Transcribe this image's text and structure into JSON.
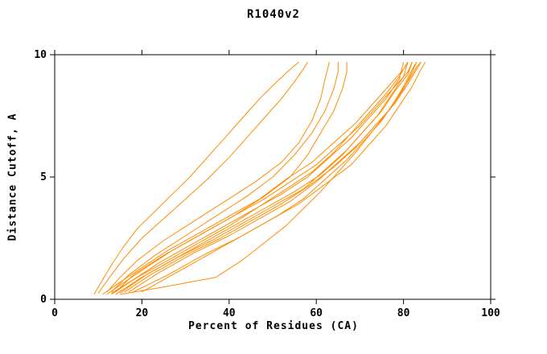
{
  "chart_data": {
    "type": "line",
    "title": "R1040v2",
    "xlabel": "Percent of Residues (CA)",
    "ylabel": "Distance Cutoff, A",
    "xlim": [
      0,
      100
    ],
    "ylim": [
      0,
      10
    ],
    "x_ticks": [
      0,
      20,
      40,
      60,
      80,
      100
    ],
    "y_ticks": [
      0,
      5,
      10
    ],
    "grid": false,
    "legend": "none",
    "frame": "box",
    "series_color": "#ff8c00",
    "axis_color": "#000000",
    "series": [
      {
        "name": "curve-1",
        "points": [
          [
            9,
            0.2
          ],
          [
            11,
            0.8
          ],
          [
            13,
            1.4
          ],
          [
            16,
            2.2
          ],
          [
            19,
            2.9
          ],
          [
            23,
            3.6
          ],
          [
            27,
            4.3
          ],
          [
            31,
            5.0
          ],
          [
            35,
            5.8
          ],
          [
            39,
            6.6
          ],
          [
            43,
            7.4
          ],
          [
            47,
            8.2
          ],
          [
            51,
            8.9
          ],
          [
            54,
            9.4
          ],
          [
            56,
            9.7
          ]
        ]
      },
      {
        "name": "curve-2",
        "points": [
          [
            10,
            0.25
          ],
          [
            13,
            1.0
          ],
          [
            16,
            1.7
          ],
          [
            20,
            2.5
          ],
          [
            25,
            3.3
          ],
          [
            30,
            4.1
          ],
          [
            35,
            4.9
          ],
          [
            40,
            5.8
          ],
          [
            44,
            6.6
          ],
          [
            48,
            7.4
          ],
          [
            52,
            8.2
          ],
          [
            55,
            8.9
          ],
          [
            57,
            9.4
          ],
          [
            58,
            9.7
          ]
        ]
      },
      {
        "name": "curve-3",
        "points": [
          [
            12,
            0.3
          ],
          [
            15,
            0.9
          ],
          [
            19,
            1.6
          ],
          [
            25,
            2.4
          ],
          [
            32,
            3.2
          ],
          [
            39,
            4.0
          ],
          [
            46,
            4.8
          ],
          [
            52,
            5.6
          ],
          [
            56,
            6.4
          ],
          [
            59,
            7.3
          ],
          [
            61,
            8.2
          ],
          [
            62,
            9.0
          ],
          [
            63,
            9.7
          ]
        ]
      },
      {
        "name": "curve-4",
        "points": [
          [
            13,
            0.3
          ],
          [
            17,
            1.0
          ],
          [
            23,
            1.8
          ],
          [
            30,
            2.6
          ],
          [
            37,
            3.4
          ],
          [
            44,
            4.2
          ],
          [
            50,
            5.0
          ],
          [
            55,
            5.9
          ],
          [
            59,
            6.8
          ],
          [
            62,
            7.7
          ],
          [
            64,
            8.6
          ],
          [
            65,
            9.3
          ],
          [
            65,
            9.7
          ]
        ]
      },
      {
        "name": "curve-5",
        "points": [
          [
            14,
            0.3
          ],
          [
            18,
            1.0
          ],
          [
            25,
            1.8
          ],
          [
            33,
            2.6
          ],
          [
            41,
            3.4
          ],
          [
            48,
            4.2
          ],
          [
            54,
            5.0
          ],
          [
            58,
            5.9
          ],
          [
            61,
            6.8
          ],
          [
            64,
            7.7
          ],
          [
            66,
            8.6
          ],
          [
            67,
            9.3
          ],
          [
            67,
            9.7
          ]
        ]
      },
      {
        "name": "curve-6",
        "points": [
          [
            13,
            0.2
          ],
          [
            18,
            0.8
          ],
          [
            24,
            1.5
          ],
          [
            31,
            2.2
          ],
          [
            38,
            2.9
          ],
          [
            45,
            3.6
          ],
          [
            52,
            4.3
          ],
          [
            58,
            5.0
          ],
          [
            63,
            5.8
          ],
          [
            68,
            6.6
          ],
          [
            72,
            7.4
          ],
          [
            76,
            8.2
          ],
          [
            79,
            9.0
          ],
          [
            80,
            9.7
          ]
        ]
      },
      {
        "name": "curve-7",
        "points": [
          [
            14,
            0.2
          ],
          [
            20,
            0.9
          ],
          [
            27,
            1.6
          ],
          [
            34,
            2.3
          ],
          [
            41,
            3.0
          ],
          [
            48,
            3.7
          ],
          [
            55,
            4.4
          ],
          [
            61,
            5.1
          ],
          [
            66,
            5.9
          ],
          [
            70,
            6.7
          ],
          [
            74,
            7.5
          ],
          [
            77,
            8.3
          ],
          [
            80,
            9.1
          ],
          [
            81,
            9.7
          ]
        ]
      },
      {
        "name": "curve-8",
        "points": [
          [
            15,
            0.25
          ],
          [
            21,
            1.0
          ],
          [
            28,
            1.7
          ],
          [
            36,
            2.4
          ],
          [
            43,
            3.1
          ],
          [
            50,
            3.8
          ],
          [
            57,
            4.5
          ],
          [
            62,
            5.3
          ],
          [
            67,
            6.1
          ],
          [
            71,
            6.9
          ],
          [
            75,
            7.7
          ],
          [
            78,
            8.5
          ],
          [
            81,
            9.2
          ],
          [
            82,
            9.7
          ]
        ]
      },
      {
        "name": "curve-9",
        "points": [
          [
            16,
            0.3
          ],
          [
            22,
            1.0
          ],
          [
            30,
            1.8
          ],
          [
            38,
            2.5
          ],
          [
            45,
            3.2
          ],
          [
            52,
            3.9
          ],
          [
            58,
            4.6
          ],
          [
            64,
            5.4
          ],
          [
            69,
            6.2
          ],
          [
            73,
            7.0
          ],
          [
            77,
            7.8
          ],
          [
            80,
            8.6
          ],
          [
            82,
            9.3
          ],
          [
            83,
            9.7
          ]
        ]
      },
      {
        "name": "curve-10",
        "points": [
          [
            17,
            0.3
          ],
          [
            24,
            1.1
          ],
          [
            32,
            1.9
          ],
          [
            40,
            2.6
          ],
          [
            47,
            3.3
          ],
          [
            54,
            4.0
          ],
          [
            60,
            4.8
          ],
          [
            65,
            5.6
          ],
          [
            70,
            6.4
          ],
          [
            74,
            7.2
          ],
          [
            78,
            8.0
          ],
          [
            81,
            8.8
          ],
          [
            83,
            9.4
          ],
          [
            84,
            9.7
          ]
        ]
      },
      {
        "name": "curve-11",
        "points": [
          [
            20,
            0.3
          ],
          [
            28,
            1.1
          ],
          [
            36,
            1.9
          ],
          [
            44,
            2.7
          ],
          [
            51,
            3.4
          ],
          [
            57,
            4.1
          ],
          [
            62,
            4.9
          ],
          [
            67,
            5.7
          ],
          [
            71,
            6.5
          ],
          [
            75,
            7.3
          ],
          [
            78,
            8.1
          ],
          [
            81,
            8.9
          ],
          [
            83,
            9.5
          ],
          [
            84,
            9.7
          ]
        ]
      },
      {
        "name": "curve-12",
        "points": [
          [
            15,
            0.2
          ],
          [
            25,
            0.5
          ],
          [
            37,
            0.9
          ],
          [
            43,
            1.6
          ],
          [
            48,
            2.3
          ],
          [
            53,
            3.0
          ],
          [
            57,
            3.7
          ],
          [
            61,
            4.4
          ],
          [
            65,
            5.2
          ],
          [
            69,
            6.0
          ],
          [
            73,
            6.9
          ],
          [
            77,
            7.8
          ],
          [
            80,
            8.7
          ],
          [
            82,
            9.4
          ],
          [
            83,
            9.7
          ]
        ]
      },
      {
        "name": "curve-13",
        "points": [
          [
            12,
            0.2
          ],
          [
            16,
            0.7
          ],
          [
            21,
            1.3
          ],
          [
            27,
            2.0
          ],
          [
            34,
            2.7
          ],
          [
            41,
            3.4
          ],
          [
            48,
            4.1
          ],
          [
            54,
            4.8
          ],
          [
            60,
            5.5
          ],
          [
            65,
            6.3
          ],
          [
            70,
            7.1
          ],
          [
            74,
            7.9
          ],
          [
            78,
            8.7
          ],
          [
            81,
            9.3
          ],
          [
            82,
            9.7
          ]
        ]
      },
      {
        "name": "curve-14",
        "points": [
          [
            11,
            0.2
          ],
          [
            15,
            0.7
          ],
          [
            20,
            1.3
          ],
          [
            26,
            2.0
          ],
          [
            33,
            2.7
          ],
          [
            40,
            3.4
          ],
          [
            47,
            4.1
          ],
          [
            53,
            4.9
          ],
          [
            59,
            5.6
          ],
          [
            64,
            6.4
          ],
          [
            69,
            7.2
          ],
          [
            73,
            8.0
          ],
          [
            77,
            8.8
          ],
          [
            80,
            9.4
          ],
          [
            81,
            9.7
          ]
        ]
      },
      {
        "name": "curve-15",
        "points": [
          [
            18,
            0.3
          ],
          [
            26,
            1.0
          ],
          [
            34,
            1.8
          ],
          [
            42,
            2.5
          ],
          [
            49,
            3.2
          ],
          [
            56,
            3.9
          ],
          [
            62,
            4.7
          ],
          [
            68,
            5.5
          ],
          [
            72,
            6.3
          ],
          [
            76,
            7.1
          ],
          [
            79,
            7.9
          ],
          [
            82,
            8.7
          ],
          [
            84,
            9.4
          ],
          [
            85,
            9.7
          ]
        ]
      },
      {
        "name": "curve-16",
        "points": [
          [
            13,
            0.25
          ],
          [
            19,
            0.9
          ],
          [
            26,
            1.6
          ],
          [
            33,
            2.3
          ],
          [
            40,
            3.0
          ],
          [
            47,
            3.8
          ],
          [
            53,
            4.5
          ],
          [
            59,
            5.2
          ],
          [
            64,
            6.0
          ],
          [
            68,
            6.8
          ],
          [
            72,
            7.6
          ],
          [
            76,
            8.4
          ],
          [
            79,
            9.1
          ],
          [
            81,
            9.7
          ]
        ]
      }
    ]
  }
}
